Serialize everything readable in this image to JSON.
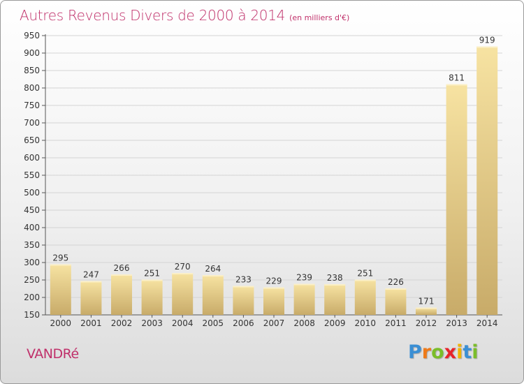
{
  "header": {
    "title": "Autres Revenus Divers de 2000 à 2014",
    "subtitle": "(en milliers d'€)"
  },
  "footer": {
    "commune": "VANDRé",
    "logo_letters": [
      "P",
      "r",
      "o",
      "x",
      "i",
      "t",
      "i"
    ],
    "logo_colors": [
      "#3b8fd4",
      "#ee7a1a",
      "#7bbd2a",
      "#e8232a",
      "#f0b400",
      "#3b8fd4",
      "#7bbd2a"
    ]
  },
  "chart_data": {
    "type": "bar",
    "title": "Autres Revenus Divers de 2000 à 2014",
    "subtitle": "(en milliers d'€)",
    "xlabel": "",
    "ylabel": "",
    "categories": [
      "2000",
      "2001",
      "2002",
      "2003",
      "2004",
      "2005",
      "2006",
      "2007",
      "2008",
      "2009",
      "2010",
      "2011",
      "2012",
      "2013",
      "2014"
    ],
    "values": [
      295,
      247,
      266,
      251,
      270,
      264,
      233,
      229,
      239,
      238,
      251,
      226,
      171,
      811,
      919
    ],
    "ylim": [
      150,
      950
    ],
    "yticks": [
      150,
      200,
      250,
      300,
      350,
      400,
      450,
      500,
      550,
      600,
      650,
      700,
      750,
      800,
      850,
      900,
      950
    ],
    "grid": true,
    "bar_color_light": "#f7e3a2",
    "bar_color_dark": "#c8ab69"
  }
}
